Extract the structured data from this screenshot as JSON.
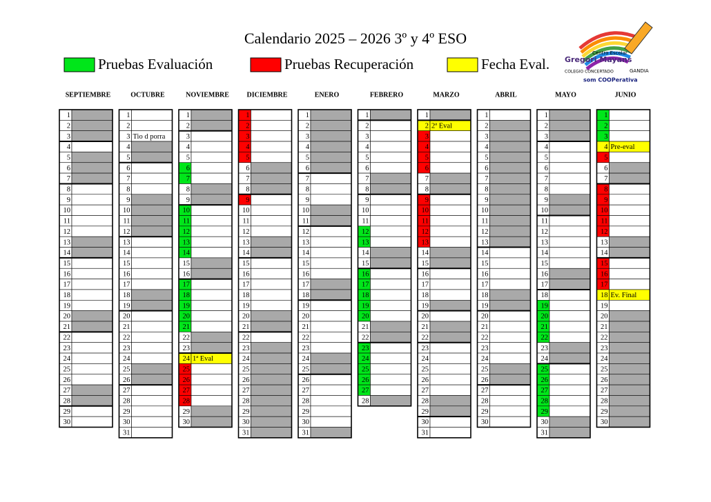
{
  "header": {
    "title": "Calendario 2025 – 2026 3º y 4º ESO"
  },
  "legend": [
    {
      "label": "Pruebas Evaluación",
      "color": "#00e61a"
    },
    {
      "label": "Pruebas Recuperación",
      "color": "#ff0000"
    },
    {
      "label": "Fecha Eval.",
      "color": "#ffff00"
    }
  ],
  "logo": {
    "line1": "Centro Escolar",
    "line2": "Gregori Mayans",
    "line3": "COLEGIO CONCERTADO",
    "line4": "GANDIA",
    "line5": "som COOPerativa"
  },
  "fill_key": {
    "w": "#a9a9a9",
    "g": "#00e61a",
    "r": "#ff0000",
    "y": "#ffff00",
    ".": "#ffffff"
  },
  "months": [
    {
      "name": "SEPTIEMBRE",
      "days": [
        1,
        2,
        3,
        4,
        5,
        6,
        7,
        8,
        9,
        10,
        11,
        12,
        13,
        14,
        15,
        16,
        17,
        18,
        19,
        20,
        21,
        22,
        23,
        24,
        25,
        26,
        27,
        28,
        29,
        30
      ],
      "fills": "www.www.....ww.....ww.....ww..",
      "notes": {}
    },
    {
      "name": "OCTUBRE",
      "days": [
        1,
        2,
        3,
        4,
        5,
        6,
        7,
        8,
        9,
        10,
        11,
        12,
        13,
        14,
        15,
        16,
        17,
        18,
        19,
        20,
        21,
        22,
        23,
        24,
        25,
        26,
        27,
        28,
        29,
        30,
        31
      ],
      "fills": "...ww...wwww.....ww.....ww.....",
      "notes": {
        "3": "Tio d porra"
      }
    },
    {
      "name": "NOVIEMBRE",
      "days": [
        1,
        2,
        3,
        4,
        5,
        6,
        7,
        8,
        9,
        10,
        11,
        12,
        13,
        14,
        15,
        16,
        17,
        18,
        19,
        20,
        21,
        22,
        23,
        24,
        25,
        26,
        27,
        28,
        29,
        30
      ],
      "fills": "ww...ggwwgggggwwgggggwwyrrrrww",
      "notes": {
        "24": "1ª Eval"
      }
    },
    {
      "name": "DICIEMBRE",
      "days": [
        1,
        2,
        3,
        4,
        5,
        6,
        7,
        8,
        9,
        10,
        11,
        12,
        13,
        14,
        15,
        16,
        17,
        18,
        19,
        20,
        21,
        22,
        23,
        24,
        25,
        26,
        27,
        28,
        29,
        30,
        31
      ],
      "fills": "rrrrrwwwr...ww.....ww.wwwwwwwww",
      "notes": {}
    },
    {
      "name": "ENERO",
      "days": [
        1,
        2,
        3,
        4,
        5,
        6,
        7,
        8,
        9,
        10,
        11,
        12,
        13,
        14,
        15,
        16,
        17,
        18,
        19,
        20,
        21,
        22,
        23,
        24,
        25,
        26,
        27,
        28,
        29,
        30,
        31
      ],
      "fills": "wwwwww...ww.....ww.....ww.....w",
      "notes": {}
    },
    {
      "name": "FEBRERO",
      "days": [
        1,
        2,
        3,
        4,
        5,
        6,
        7,
        8,
        9,
        10,
        11,
        12,
        13,
        14,
        15,
        16,
        17,
        18,
        19,
        20,
        21,
        22,
        23,
        24,
        25,
        26,
        27,
        28
      ],
      "fills": "w.....ww...ggwwgggggwwgggggw",
      "notes": {}
    },
    {
      "name": "MARZO",
      "days": [
        1,
        2,
        3,
        4,
        5,
        6,
        7,
        8,
        9,
        10,
        11,
        12,
        13,
        14,
        15,
        16,
        17,
        18,
        19,
        20,
        21,
        22,
        23,
        24,
        25,
        26,
        27,
        28,
        29,
        30,
        31
      ],
      "fills": "wyrrrrwwrrrrrww...w.ww.....ww..",
      "notes": {
        "2": "2ª Eval"
      }
    },
    {
      "name": "ABRIL",
      "days": [
        1,
        2,
        3,
        4,
        5,
        6,
        7,
        8,
        9,
        10,
        11,
        12,
        13,
        14,
        15,
        16,
        17,
        18,
        19,
        20,
        21,
        22,
        23,
        24,
        25,
        26,
        27,
        28,
        29,
        30
      ],
      "fills": ".wwwwwwwwwwww....ww.....ww....",
      "notes": {}
    },
    {
      "name": "MAYO",
      "days": [
        1,
        2,
        3,
        4,
        5,
        6,
        7,
        8,
        9,
        10,
        11,
        12,
        13,
        14,
        15,
        16,
        17,
        18,
        19,
        20,
        21,
        22,
        23,
        24,
        25,
        26,
        27,
        28,
        29,
        30,
        31
      ],
      "fills": "www.....ww.....ww.ggggwwgggggww",
      "notes": {}
    },
    {
      "name": "JUNIO",
      "days": [
        1,
        2,
        3,
        4,
        5,
        6,
        7,
        8,
        9,
        10,
        11,
        12,
        13,
        14,
        15,
        16,
        17,
        18,
        19,
        20,
        21,
        22,
        23,
        24,
        25,
        26,
        27,
        28,
        29,
        30
      ],
      "fills": "gggyrwwrrrrrwwrrry.wwwwwwwwwww",
      "notes": {
        "4": "Pre-eval",
        "18": "Ev. Final"
      }
    }
  ]
}
